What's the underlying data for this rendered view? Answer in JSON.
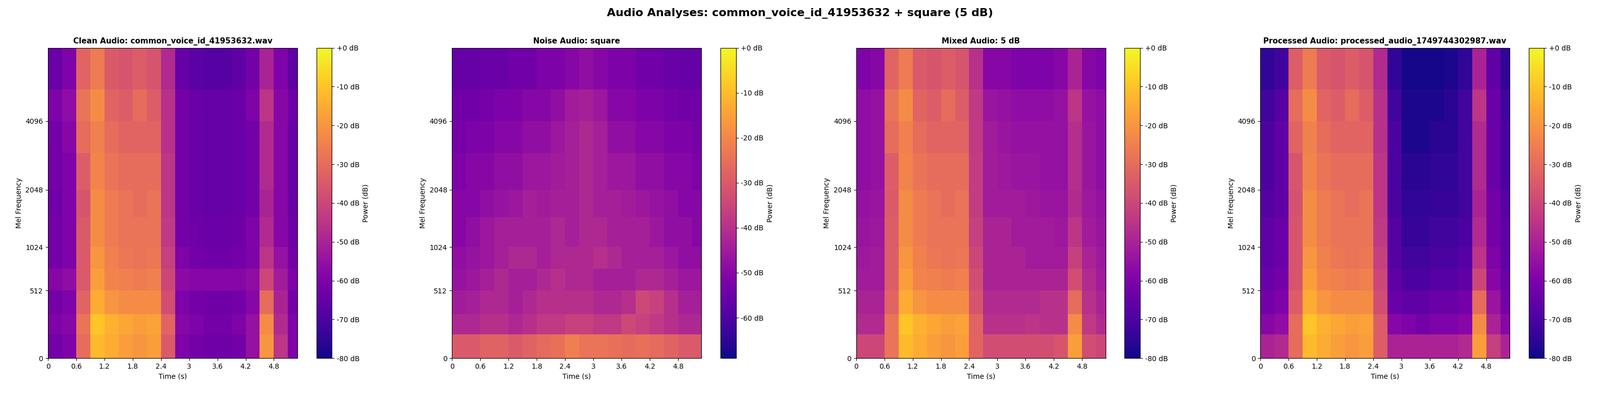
{
  "title": "Audio Analyses: common_voice_id_41953632 + square (5 dB)",
  "chart_data": [
    {
      "type": "heatmap",
      "title": "Clean Audio: common_voice_id_41953632.wav",
      "x_label": "Time (s)",
      "y_label": "Mel Frequency",
      "x_edges": [
        0,
        0.3,
        0.6,
        0.9,
        1.2,
        1.5,
        1.8,
        2.1,
        2.4,
        2.7,
        3.0,
        3.3,
        3.6,
        3.9,
        4.2,
        4.5,
        4.8,
        5.1,
        5.3
      ],
      "y_edges": [
        0,
        150,
        300,
        512,
        750,
        1024,
        1500,
        2048,
        3000,
        4096,
        5500,
        8000
      ],
      "xlim": [
        0,
        5.3
      ],
      "ylim": [
        0,
        8000
      ],
      "xticks": [
        0,
        0.6,
        1.2,
        1.8,
        2.4,
        3,
        3.6,
        4.2,
        4.8
      ],
      "yticks": [
        0,
        512,
        1024,
        2048,
        4096
      ],
      "cells": [
        [
          -62,
          -60,
          -30,
          -12,
          -15,
          -18,
          -20,
          -18,
          -35,
          -60,
          -62,
          -63,
          -63,
          -62,
          -55,
          -20,
          -45,
          -60
        ],
        [
          -60,
          -58,
          -28,
          -10,
          -14,
          -16,
          -18,
          -17,
          -32,
          -58,
          -60,
          -62,
          -62,
          -60,
          -55,
          -22,
          -48,
          -60
        ],
        [
          -62,
          -60,
          -32,
          -15,
          -20,
          -22,
          -22,
          -22,
          -38,
          -60,
          -62,
          -63,
          -63,
          -62,
          -58,
          -30,
          -50,
          -62
        ],
        [
          -58,
          -56,
          -35,
          -18,
          -24,
          -25,
          -26,
          -25,
          -40,
          -57,
          -58,
          -58,
          -58,
          -58,
          -56,
          -40,
          -52,
          -60
        ],
        [
          -62,
          -60,
          -35,
          -20,
          -25,
          -27,
          -28,
          -27,
          -42,
          -60,
          -62,
          -63,
          -63,
          -62,
          -60,
          -45,
          -55,
          -62
        ],
        [
          -62,
          -60,
          -35,
          -22,
          -26,
          -28,
          -28,
          -28,
          -44,
          -62,
          -63,
          -64,
          -64,
          -63,
          -60,
          -48,
          -58,
          -63
        ],
        [
          -63,
          -60,
          -36,
          -22,
          -26,
          -28,
          -30,
          -28,
          -45,
          -62,
          -64,
          -65,
          -65,
          -64,
          -62,
          -50,
          -58,
          -64
        ],
        [
          -62,
          -60,
          -34,
          -24,
          -28,
          -30,
          -30,
          -30,
          -45,
          -62,
          -64,
          -65,
          -65,
          -64,
          -62,
          -48,
          -58,
          -64
        ],
        [
          -62,
          -58,
          -30,
          -25,
          -30,
          -32,
          -32,
          -32,
          -46,
          -62,
          -64,
          -65,
          -65,
          -64,
          -62,
          -48,
          -58,
          -64
        ],
        [
          -60,
          -56,
          -28,
          -22,
          -32,
          -34,
          -30,
          -34,
          -46,
          -62,
          -64,
          -65,
          -65,
          -64,
          -60,
          -45,
          -58,
          -63
        ],
        [
          -64,
          -60,
          -32,
          -26,
          -35,
          -36,
          -34,
          -36,
          -48,
          -65,
          -67,
          -68,
          -68,
          -66,
          -62,
          -50,
          -60,
          -66
        ]
      ],
      "colorbar_label": "Power (dB)",
      "colorbar_range": [
        -80,
        0
      ],
      "colorbar_ticks": [
        {
          "value": 0,
          "label": "+0 dB"
        },
        {
          "value": -10,
          "label": "-10 dB"
        },
        {
          "value": -20,
          "label": "-20 dB"
        },
        {
          "value": -30,
          "label": "-30 dB"
        },
        {
          "value": -40,
          "label": "-40 dB"
        },
        {
          "value": -50,
          "label": "-50 dB"
        },
        {
          "value": -60,
          "label": "-60 dB"
        },
        {
          "value": -70,
          "label": "-70 dB"
        },
        {
          "value": -80,
          "label": "-80 dB"
        }
      ]
    },
    {
      "type": "heatmap",
      "title": "Noise Audio: square",
      "x_label": "Time (s)",
      "y_label": "Mel Frequency",
      "x_edges": [
        0,
        0.3,
        0.6,
        0.9,
        1.2,
        1.5,
        1.8,
        2.1,
        2.4,
        2.7,
        3.0,
        3.3,
        3.6,
        3.9,
        4.2,
        4.5,
        4.8,
        5.1,
        5.3
      ],
      "y_edges": [
        0,
        150,
        300,
        512,
        750,
        1024,
        1500,
        2048,
        3000,
        4096,
        5500,
        8000
      ],
      "xlim": [
        0,
        5.3
      ],
      "ylim": [
        0,
        8000
      ],
      "xticks": [
        0,
        0.6,
        1.2,
        1.8,
        2.4,
        3,
        3.6,
        4.2,
        4.8
      ],
      "yticks": [
        0,
        512,
        1024,
        2048,
        4096
      ],
      "cells": [
        [
          -30,
          -30,
          -28,
          -28,
          -30,
          -28,
          -26,
          -25,
          -22,
          -24,
          -24,
          -25,
          -26,
          -25,
          -26,
          -28,
          -30,
          -30
        ],
        [
          -42,
          -42,
          -40,
          -40,
          -42,
          -40,
          -38,
          -38,
          -36,
          -36,
          -38,
          -38,
          -34,
          -36,
          -38,
          -40,
          -42,
          -42
        ],
        [
          -45,
          -44,
          -42,
          -42,
          -44,
          -42,
          -40,
          -40,
          -40,
          -40,
          -42,
          -42,
          -40,
          -34,
          -36,
          -40,
          -44,
          -44
        ],
        [
          -47,
          -46,
          -44,
          -42,
          -44,
          -44,
          -42,
          -40,
          -42,
          -42,
          -44,
          -44,
          -44,
          -42,
          -42,
          -44,
          -46,
          -46
        ],
        [
          -48,
          -47,
          -46,
          -44,
          -42,
          -42,
          -44,
          -42,
          -42,
          -42,
          -40,
          -42,
          -44,
          -44,
          -44,
          -46,
          -48,
          -48
        ],
        [
          -50,
          -48,
          -46,
          -44,
          -44,
          -44,
          -44,
          -42,
          -44,
          -42,
          -42,
          -44,
          -44,
          -44,
          -46,
          -48,
          -48,
          -50
        ],
        [
          -50,
          -50,
          -48,
          -47,
          -46,
          -44,
          -45,
          -44,
          -44,
          -42,
          -44,
          -44,
          -45,
          -46,
          -47,
          -48,
          -50,
          -50
        ],
        [
          -52,
          -50,
          -50,
          -48,
          -48,
          -46,
          -46,
          -45,
          -44,
          -42,
          -44,
          -46,
          -46,
          -48,
          -48,
          -50,
          -50,
          -52
        ],
        [
          -53,
          -52,
          -52,
          -50,
          -50,
          -48,
          -48,
          -46,
          -44,
          -42,
          -44,
          -48,
          -48,
          -50,
          -50,
          -52,
          -52,
          -53
        ],
        [
          -54,
          -54,
          -53,
          -52,
          -52,
          -50,
          -50,
          -48,
          -45,
          -44,
          -46,
          -50,
          -50,
          -52,
          -52,
          -53,
          -54,
          -54
        ],
        [
          -56,
          -56,
          -55,
          -55,
          -54,
          -54,
          -52,
          -52,
          -50,
          -48,
          -50,
          -52,
          -52,
          -54,
          -54,
          -55,
          -56,
          -56
        ]
      ],
      "colorbar_label": "Power (dB)",
      "colorbar_range": [
        -69,
        0
      ],
      "colorbar_ticks": [
        {
          "value": 0,
          "label": "+0 dB"
        },
        {
          "value": -10,
          "label": "-10 dB"
        },
        {
          "value": -20,
          "label": "-20 dB"
        },
        {
          "value": -30,
          "label": "-30 dB"
        },
        {
          "value": -40,
          "label": "-40 dB"
        },
        {
          "value": -50,
          "label": "-50 dB"
        },
        {
          "value": -60,
          "label": "-60 dB"
        }
      ]
    },
    {
      "type": "heatmap",
      "title": "Mixed Audio: 5 dB",
      "x_label": "Time (s)",
      "y_label": "Mel Frequency",
      "x_edges": [
        0,
        0.3,
        0.6,
        0.9,
        1.2,
        1.5,
        1.8,
        2.1,
        2.4,
        2.7,
        3.0,
        3.3,
        3.6,
        3.9,
        4.2,
        4.5,
        4.8,
        5.1,
        5.3
      ],
      "y_edges": [
        0,
        150,
        300,
        512,
        750,
        1024,
        1500,
        2048,
        3000,
        4096,
        5500,
        8000
      ],
      "xlim": [
        0,
        5.3
      ],
      "ylim": [
        0,
        8000
      ],
      "xticks": [
        0,
        0.6,
        1.2,
        1.8,
        2.4,
        3,
        3.6,
        4.2,
        4.8
      ],
      "yticks": [
        0,
        512,
        1024,
        2048,
        4096
      ],
      "cells": [
        [
          -40,
          -40,
          -28,
          -12,
          -15,
          -18,
          -20,
          -18,
          -32,
          -38,
          -38,
          -38,
          -38,
          -38,
          -36,
          -18,
          -38,
          -40
        ],
        [
          -48,
          -48,
          -28,
          -10,
          -14,
          -16,
          -18,
          -17,
          -32,
          -46,
          -46,
          -46,
          -45,
          -46,
          -46,
          -22,
          -44,
          -48
        ],
        [
          -50,
          -50,
          -32,
          -15,
          -20,
          -22,
          -22,
          -22,
          -36,
          -48,
          -48,
          -48,
          -48,
          -46,
          -46,
          -30,
          -46,
          -50
        ],
        [
          -52,
          -52,
          -34,
          -18,
          -24,
          -25,
          -26,
          -25,
          -38,
          -50,
          -50,
          -50,
          -50,
          -50,
          -50,
          -38,
          -48,
          -52
        ],
        [
          -53,
          -52,
          -34,
          -20,
          -25,
          -27,
          -28,
          -27,
          -40,
          -50,
          -50,
          -50,
          -52,
          -52,
          -52,
          -42,
          -50,
          -53
        ],
        [
          -54,
          -53,
          -34,
          -22,
          -26,
          -28,
          -28,
          -28,
          -42,
          -50,
          -50,
          -52,
          -52,
          -52,
          -53,
          -45,
          -52,
          -54
        ],
        [
          -55,
          -54,
          -35,
          -22,
          -26,
          -28,
          -30,
          -28,
          -43,
          -52,
          -52,
          -52,
          -53,
          -54,
          -54,
          -48,
          -53,
          -55
        ],
        [
          -56,
          -55,
          -34,
          -24,
          -28,
          -30,
          -30,
          -30,
          -43,
          -52,
          -53,
          -54,
          -54,
          -55,
          -55,
          -47,
          -54,
          -56
        ],
        [
          -56,
          -55,
          -30,
          -25,
          -30,
          -32,
          -32,
          -32,
          -44,
          -52,
          -54,
          -55,
          -55,
          -55,
          -55,
          -47,
          -54,
          -56
        ],
        [
          -56,
          -55,
          -28,
          -22,
          -32,
          -34,
          -30,
          -34,
          -44,
          -54,
          -55,
          -56,
          -56,
          -56,
          -55,
          -45,
          -55,
          -56
        ],
        [
          -60,
          -58,
          -32,
          -26,
          -35,
          -36,
          -34,
          -36,
          -46,
          -58,
          -58,
          -60,
          -60,
          -60,
          -58,
          -50,
          -58,
          -60
        ]
      ],
      "colorbar_label": "Power (dB)",
      "colorbar_range": [
        -80,
        0
      ],
      "colorbar_ticks": [
        {
          "value": 0,
          "label": "+0 dB"
        },
        {
          "value": -10,
          "label": "-10 dB"
        },
        {
          "value": -20,
          "label": "-20 dB"
        },
        {
          "value": -30,
          "label": "-30 dB"
        },
        {
          "value": -40,
          "label": "-40 dB"
        },
        {
          "value": -50,
          "label": "-50 dB"
        },
        {
          "value": -60,
          "label": "-60 dB"
        },
        {
          "value": -70,
          "label": "-70 dB"
        },
        {
          "value": -80,
          "label": "-80 dB"
        }
      ]
    },
    {
      "type": "heatmap",
      "title": "Processed Audio: processed_audio_1749744302987.wav",
      "x_label": "Time (s)",
      "y_label": "Mel Frequency",
      "x_edges": [
        0,
        0.3,
        0.6,
        0.9,
        1.2,
        1.5,
        1.8,
        2.1,
        2.4,
        2.7,
        3.0,
        3.3,
        3.6,
        3.9,
        4.2,
        4.5,
        4.8,
        5.1,
        5.3
      ],
      "y_edges": [
        0,
        150,
        300,
        512,
        750,
        1024,
        1500,
        2048,
        3000,
        4096,
        5500,
        8000
      ],
      "xlim": [
        0,
        5.3
      ],
      "ylim": [
        0,
        8000
      ],
      "xticks": [
        0,
        0.6,
        1.2,
        1.8,
        2.4,
        3,
        3.6,
        4.2,
        4.8
      ],
      "yticks": [
        0,
        512,
        1024,
        2048,
        4096
      ],
      "cells": [
        [
          -50,
          -48,
          -30,
          -12,
          -15,
          -18,
          -20,
          -18,
          -34,
          -50,
          -50,
          -50,
          -50,
          -50,
          -48,
          -18,
          -42,
          -50
        ],
        [
          -58,
          -56,
          -30,
          -10,
          -14,
          -16,
          -18,
          -17,
          -34,
          -58,
          -60,
          -62,
          -60,
          -60,
          -58,
          -22,
          -50,
          -58
        ],
        [
          -62,
          -60,
          -34,
          -15,
          -20,
          -22,
          -22,
          -22,
          -38,
          -64,
          -66,
          -66,
          -64,
          -64,
          -62,
          -30,
          -54,
          -62
        ],
        [
          -64,
          -62,
          -36,
          -18,
          -24,
          -25,
          -26,
          -25,
          -40,
          -66,
          -70,
          -70,
          -68,
          -68,
          -66,
          -40,
          -58,
          -64
        ],
        [
          -66,
          -64,
          -36,
          -20,
          -25,
          -27,
          -28,
          -27,
          -42,
          -68,
          -72,
          -72,
          -70,
          -70,
          -68,
          -45,
          -60,
          -66
        ],
        [
          -66,
          -64,
          -36,
          -22,
          -26,
          -28,
          -28,
          -28,
          -44,
          -68,
          -74,
          -74,
          -72,
          -72,
          -70,
          -48,
          -62,
          -66
        ],
        [
          -68,
          -66,
          -37,
          -22,
          -26,
          -28,
          -30,
          -28,
          -45,
          -70,
          -75,
          -75,
          -74,
          -74,
          -72,
          -50,
          -62,
          -68
        ],
        [
          -70,
          -66,
          -36,
          -24,
          -28,
          -30,
          -30,
          -30,
          -45,
          -70,
          -76,
          -76,
          -75,
          -75,
          -72,
          -48,
          -64,
          -70
        ],
        [
          -70,
          -66,
          -32,
          -25,
          -30,
          -32,
          -32,
          -32,
          -46,
          -70,
          -78,
          -78,
          -76,
          -76,
          -72,
          -48,
          -64,
          -70
        ],
        [
          -72,
          -68,
          -30,
          -22,
          -32,
          -34,
          -30,
          -34,
          -46,
          -72,
          -78,
          -78,
          -78,
          -76,
          -72,
          -45,
          -64,
          -72
        ],
        [
          -75,
          -72,
          -34,
          -26,
          -35,
          -36,
          -34,
          -36,
          -48,
          -75,
          -79,
          -79,
          -79,
          -78,
          -75,
          -50,
          -66,
          -75
        ]
      ],
      "colorbar_label": "Power (dB)",
      "colorbar_range": [
        -80,
        0
      ],
      "colorbar_ticks": [
        {
          "value": 0,
          "label": "+0 dB"
        },
        {
          "value": -10,
          "label": "-10 dB"
        },
        {
          "value": -20,
          "label": "-20 dB"
        },
        {
          "value": -30,
          "label": "-30 dB"
        },
        {
          "value": -40,
          "label": "-40 dB"
        },
        {
          "value": -50,
          "label": "-50 dB"
        },
        {
          "value": -60,
          "label": "-60 dB"
        },
        {
          "value": -70,
          "label": "-70 dB"
        },
        {
          "value": -80,
          "label": "-80 dB"
        }
      ]
    }
  ]
}
